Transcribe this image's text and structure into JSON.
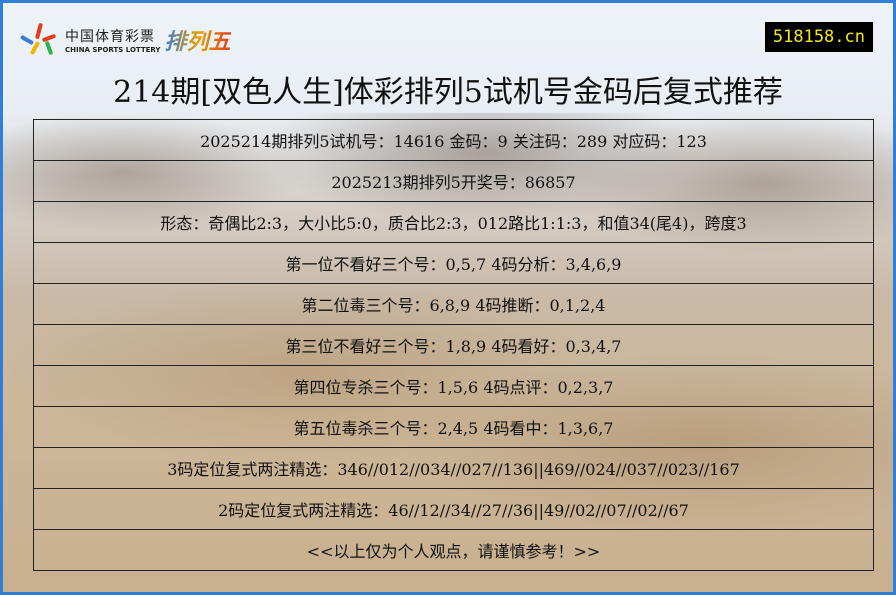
{
  "logo": {
    "cn": "中国体育彩票",
    "en": "CHINA SPORTS LOTTERY",
    "product": "排列五"
  },
  "site": "518158.cn",
  "title": "214期[双色人生]体彩排列5试机号金码后复式推荐",
  "rows": [
    "2025214期排列5试机号：14616  金码：9  关注码：289  对应码：123",
    "2025213期排列5开奖号：86857",
    "形态：奇偶比2:3，大小比5:0，质合比2:3，012路比1:1:3，和值34(尾4)，跨度3",
    "第一位不看好三个号：0,5,7 4码分析：3,4,6,9",
    "第二位毒三个号：6,8,9 4码推断：0,1,2,4",
    "第三位不看好三个号：1,8,9 4码看好：0,3,4,7",
    "第四位专杀三个号：1,5,6 4码点评：0,2,3,7",
    "第五位毒杀三个号：2,4,5 4码看中：1,3,6,7",
    "3码定位复式两注精选：346//012//034//027//136||469//024//037//023//167",
    "2码定位复式两注精选：46//12//34//27//36||49//02//07//02//67",
    "<<以上仅为个人观点，请谨慎参考！>>"
  ]
}
